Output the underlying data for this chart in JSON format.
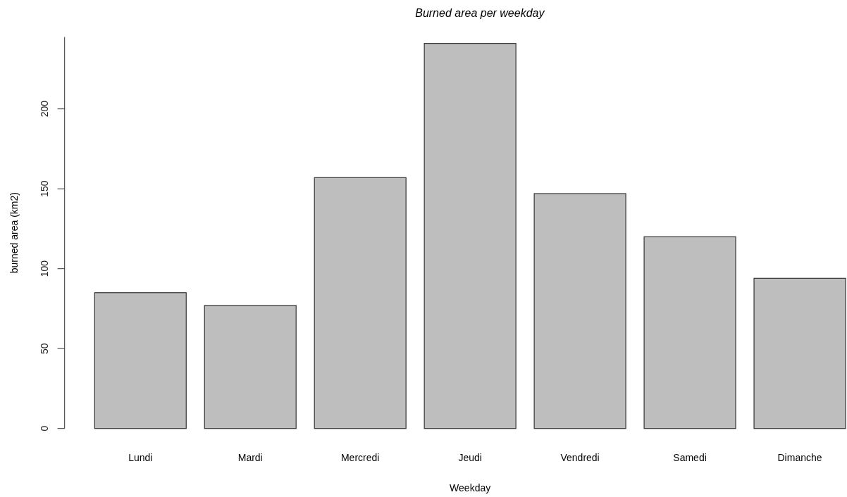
{
  "chart_data": {
    "type": "bar",
    "title": "Burned area per weekday",
    "xlabel": "Weekday",
    "ylabel": "burned area (km2)",
    "categories": [
      "Lundi",
      "Mardi",
      "Mercredi",
      "Jeudi",
      "Vendredi",
      "Samedi",
      "Dimanche"
    ],
    "values": [
      85,
      77,
      157,
      241,
      147,
      120,
      94
    ],
    "color": "#bebebe",
    "ylim": [
      0,
      245
    ],
    "yticks": [
      0,
      50,
      100,
      150,
      200
    ]
  }
}
